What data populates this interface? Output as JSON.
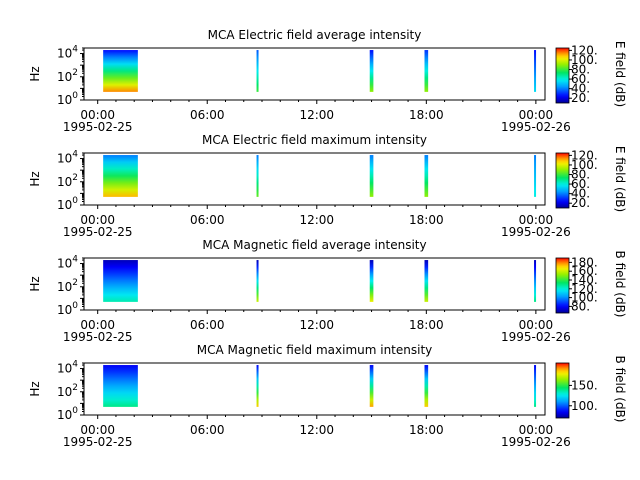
{
  "chart_data": [
    {
      "type": "heatmap",
      "title": "MCA  Electric field average intensity",
      "ylabel": "Hz",
      "y_scale": "log",
      "ylim": [
        1,
        30000
      ],
      "y_ticks": [
        {
          "value": 1,
          "base": "10",
          "exp": "0"
        },
        {
          "value": 100,
          "base": "10",
          "exp": "2"
        },
        {
          "value": 10000,
          "base": "10",
          "exp": "4"
        }
      ],
      "x_ticks": [
        {
          "hours": 0,
          "label": "00:00",
          "date": "1995-02-25"
        },
        {
          "hours": 6,
          "label": "06:00"
        },
        {
          "hours": 12,
          "label": "12:00"
        },
        {
          "hours": 18,
          "label": "18:00"
        },
        {
          "hours": 24,
          "label": "00:00",
          "date": "1995-02-26"
        }
      ],
      "xlim_hours": [
        -0.75,
        24.5
      ],
      "colorbar": {
        "label": "E field (dB)",
        "range": [
          10,
          125
        ],
        "ticks": [
          20,
          40,
          60,
          80,
          100,
          120
        ],
        "tick_labels": [
          "20.",
          "40.",
          "60.",
          "80.",
          "100.",
          "120."
        ]
      },
      "segments": [
        {
          "start_hours": 0.3,
          "end_hours": 2.2,
          "low_db": 115,
          "high_db": 25
        },
        {
          "start_hours": 8.7,
          "end_hours": 8.8,
          "low_db": 80,
          "high_db": 35
        },
        {
          "start_hours": 14.9,
          "end_hours": 15.1,
          "low_db": 90,
          "high_db": 25
        },
        {
          "start_hours": 17.9,
          "end_hours": 18.1,
          "low_db": 90,
          "high_db": 30
        },
        {
          "start_hours": 23.9,
          "end_hours": 24.0,
          "low_db": 55,
          "high_db": 25
        }
      ]
    },
    {
      "type": "heatmap",
      "title": "MCA  Electric field maximum intensity",
      "ylabel": "Hz",
      "y_scale": "log",
      "ylim": [
        1,
        30000
      ],
      "y_ticks": [
        {
          "value": 1,
          "base": "10",
          "exp": "0"
        },
        {
          "value": 100,
          "base": "10",
          "exp": "2"
        },
        {
          "value": 10000,
          "base": "10",
          "exp": "4"
        }
      ],
      "x_ticks": [
        {
          "hours": 0,
          "label": "00:00",
          "date": "1995-02-25"
        },
        {
          "hours": 6,
          "label": "06:00"
        },
        {
          "hours": 12,
          "label": "12:00"
        },
        {
          "hours": 18,
          "label": "18:00"
        },
        {
          "hours": 24,
          "label": "00:00",
          "date": "1995-02-26"
        }
      ],
      "xlim_hours": [
        -0.75,
        24.5
      ],
      "colorbar": {
        "label": "E field (dB)",
        "range": [
          10,
          125
        ],
        "ticks": [
          20,
          40,
          60,
          80,
          100,
          120
        ],
        "tick_labels": [
          "20.",
          "40.",
          "60.",
          "80.",
          "100.",
          "120."
        ]
      },
      "segments": [
        {
          "start_hours": 0.3,
          "end_hours": 2.2,
          "low_db": 110,
          "high_db": 40
        },
        {
          "start_hours": 8.7,
          "end_hours": 8.8,
          "low_db": 85,
          "high_db": 40
        },
        {
          "start_hours": 14.9,
          "end_hours": 15.1,
          "low_db": 90,
          "high_db": 40
        },
        {
          "start_hours": 17.9,
          "end_hours": 18.1,
          "low_db": 90,
          "high_db": 40
        },
        {
          "start_hours": 23.9,
          "end_hours": 24.0,
          "low_db": 60,
          "high_db": 40
        }
      ]
    },
    {
      "type": "heatmap",
      "title": "MCA  Magnetic field average intensity",
      "ylabel": "Hz",
      "y_scale": "log",
      "ylim": [
        1,
        30000
      ],
      "y_ticks": [
        {
          "value": 1,
          "base": "10",
          "exp": "0"
        },
        {
          "value": 100,
          "base": "10",
          "exp": "2"
        },
        {
          "value": 10000,
          "base": "10",
          "exp": "4"
        }
      ],
      "x_ticks": [
        {
          "hours": 0,
          "label": "00:00",
          "date": "1995-02-25"
        },
        {
          "hours": 6,
          "label": "06:00"
        },
        {
          "hours": 12,
          "label": "12:00"
        },
        {
          "hours": 18,
          "label": "18:00"
        },
        {
          "hours": 24,
          "label": "00:00",
          "date": "1995-02-26"
        }
      ],
      "xlim_hours": [
        -0.75,
        24.5
      ],
      "colorbar": {
        "label": "B field (dB)",
        "range": [
          65,
          190
        ],
        "ticks": [
          80,
          100,
          120,
          140,
          160,
          180
        ],
        "tick_labels": [
          "80.",
          "100.",
          "120.",
          "140.",
          "160.",
          "180."
        ]
      },
      "segments": [
        {
          "start_hours": 0.3,
          "end_hours": 2.2,
          "low_db": 125,
          "high_db": 70
        },
        {
          "start_hours": 8.7,
          "end_hours": 8.8,
          "low_db": 160,
          "high_db": 70
        },
        {
          "start_hours": 14.9,
          "end_hours": 15.1,
          "low_db": 165,
          "high_db": 70
        },
        {
          "start_hours": 17.9,
          "end_hours": 18.1,
          "low_db": 160,
          "high_db": 70
        },
        {
          "start_hours": 23.9,
          "end_hours": 24.0,
          "low_db": 130,
          "high_db": 70
        }
      ]
    },
    {
      "type": "heatmap",
      "title": "MCA  Magnetic field maximum intensity",
      "ylabel": "Hz",
      "y_scale": "log",
      "ylim": [
        1,
        30000
      ],
      "y_ticks": [
        {
          "value": 1,
          "base": "10",
          "exp": "0"
        },
        {
          "value": 100,
          "base": "10",
          "exp": "2"
        },
        {
          "value": 10000,
          "base": "10",
          "exp": "4"
        }
      ],
      "x_ticks": [
        {
          "hours": 0,
          "label": "00:00",
          "date": "1995-02-25"
        },
        {
          "hours": 6,
          "label": "06:00"
        },
        {
          "hours": 12,
          "label": "12:00"
        },
        {
          "hours": 18,
          "label": "18:00"
        },
        {
          "hours": 24,
          "label": "00:00",
          "date": "1995-02-26"
        }
      ],
      "xlim_hours": [
        -0.75,
        24.5
      ],
      "colorbar": {
        "label": "B field (dB)",
        "range": [
          70,
          205
        ],
        "ticks": [
          100,
          150
        ],
        "tick_labels": [
          "100.",
          "150."
        ]
      },
      "segments": [
        {
          "start_hours": 0.3,
          "end_hours": 2.2,
          "low_db": 140,
          "high_db": 85
        },
        {
          "start_hours": 8.7,
          "end_hours": 8.8,
          "low_db": 185,
          "high_db": 85
        },
        {
          "start_hours": 14.9,
          "end_hours": 15.1,
          "low_db": 190,
          "high_db": 85
        },
        {
          "start_hours": 17.9,
          "end_hours": 18.1,
          "low_db": 185,
          "high_db": 85
        },
        {
          "start_hours": 23.9,
          "end_hours": 24.0,
          "low_db": 140,
          "high_db": 85
        }
      ]
    }
  ]
}
